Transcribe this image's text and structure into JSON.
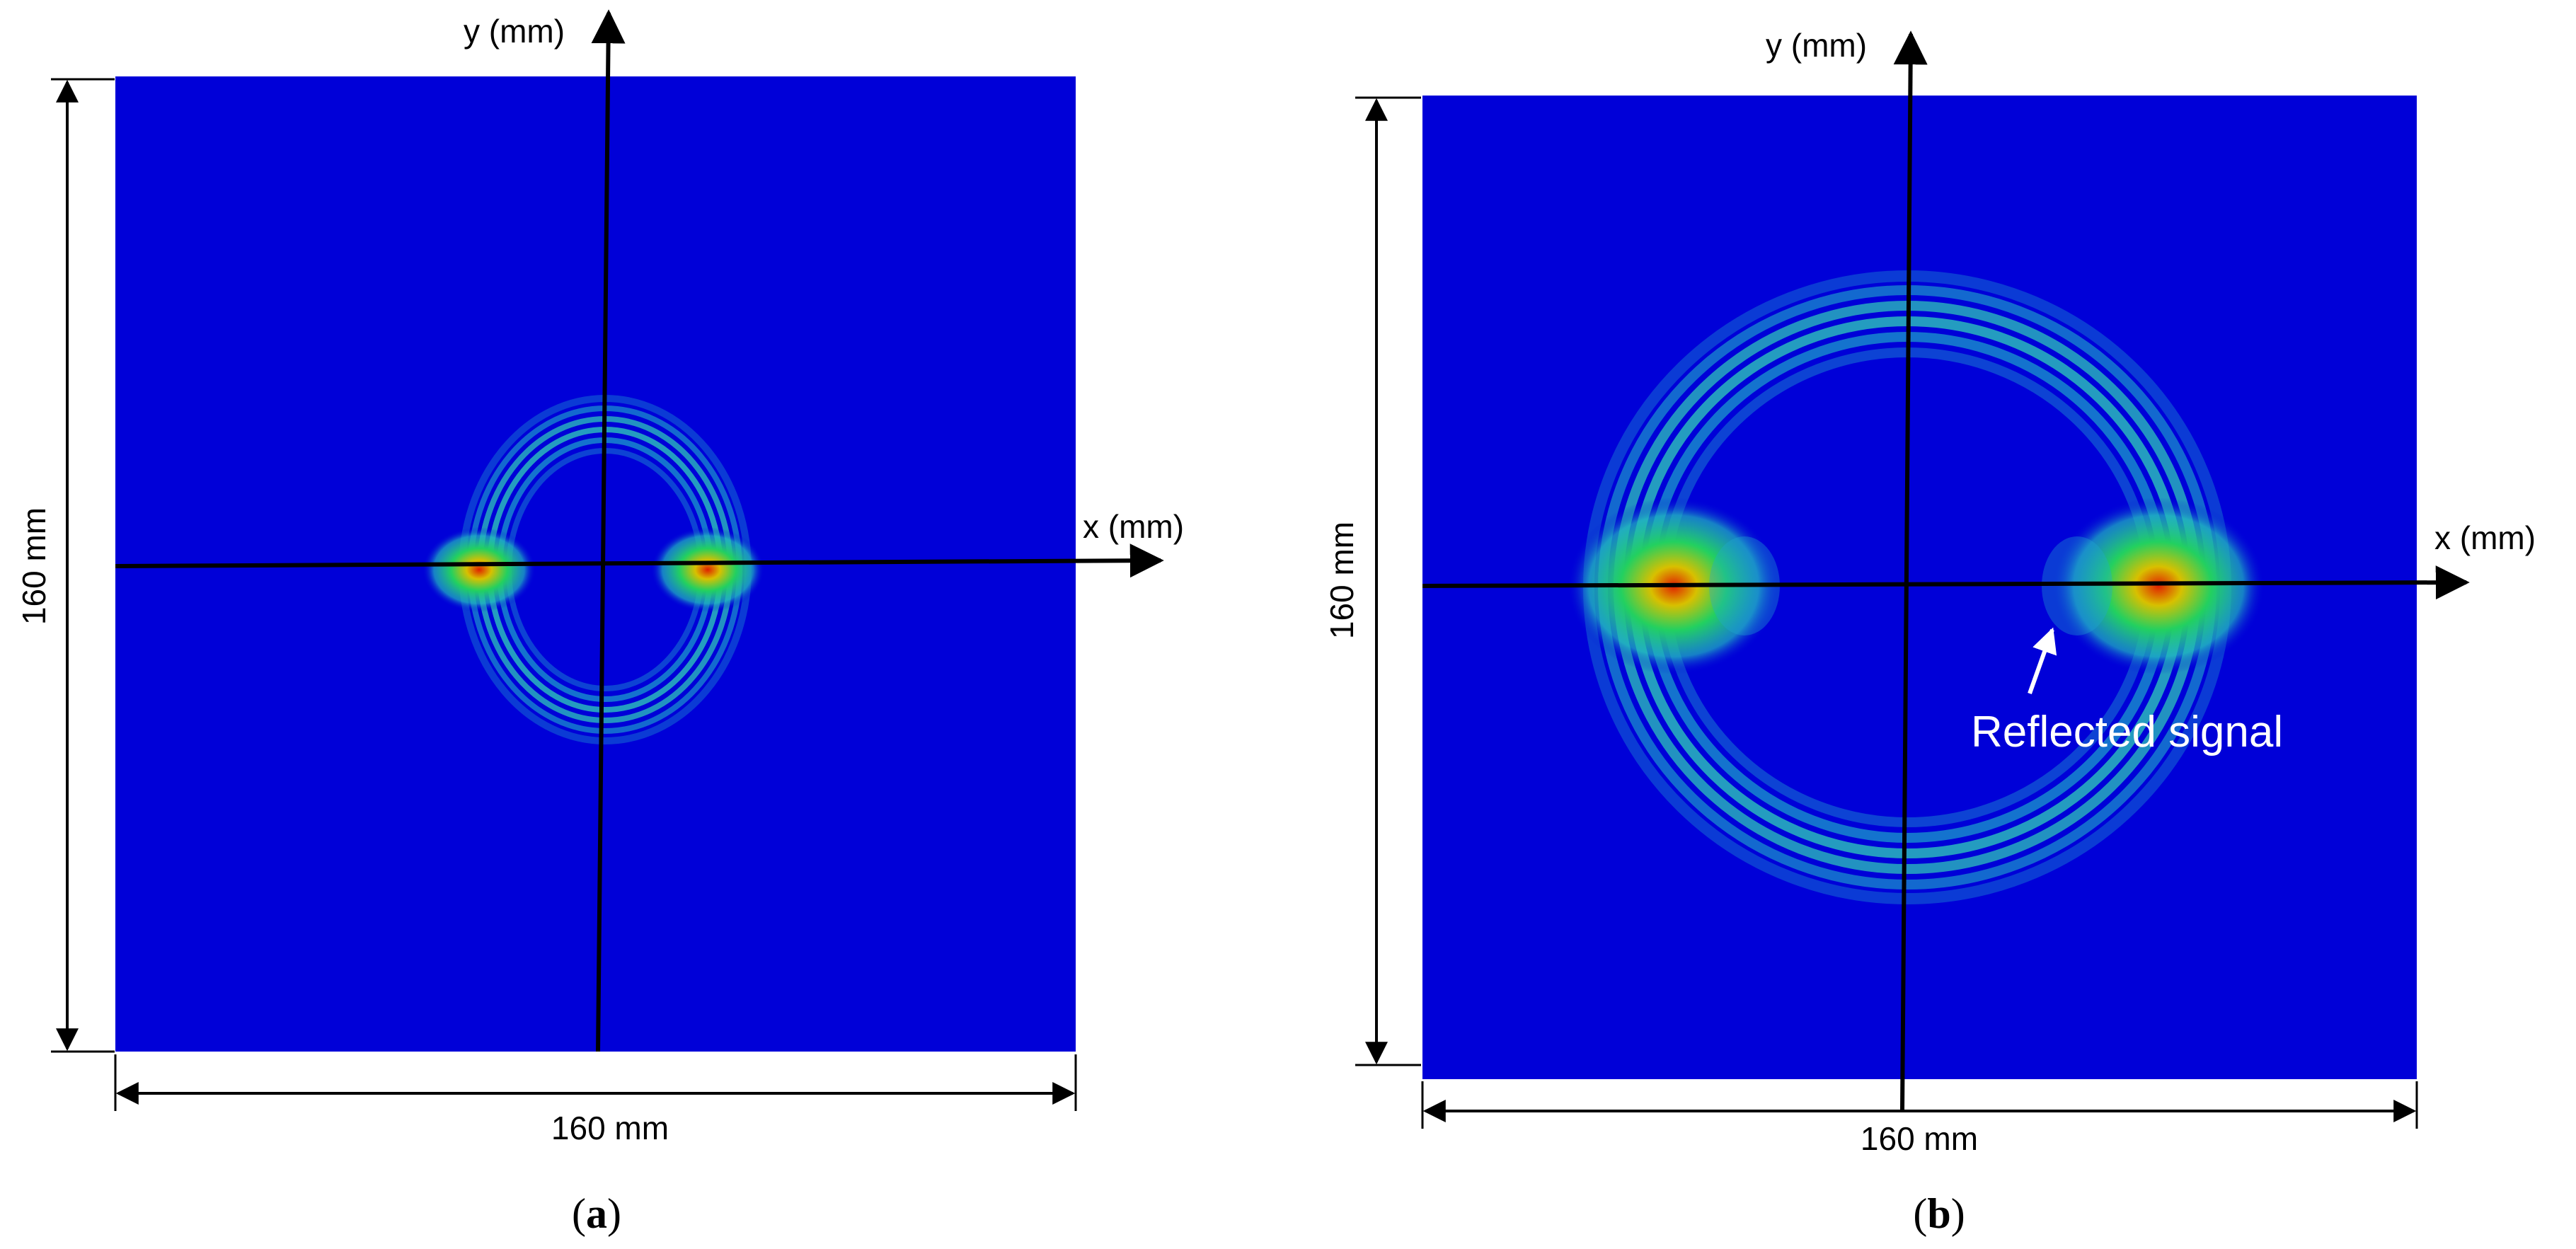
{
  "panels": [
    {
      "id": "a",
      "caption_open": "(",
      "caption_letter": "a",
      "caption_close": ")",
      "x_axis_label": "x (mm)",
      "y_axis_label": "y (mm)",
      "width_label": "160 mm",
      "height_label": "160 mm",
      "annotation": ""
    },
    {
      "id": "b",
      "caption_open": "(",
      "caption_letter": "b",
      "caption_close": ")",
      "x_axis_label": "x (mm)",
      "y_axis_label": "y (mm)",
      "width_label": "160 mm",
      "height_label": "160 mm",
      "annotation": "Reflected signal"
    }
  ],
  "colors": {
    "background_field": "#0000d8",
    "ring": "#22c0c8",
    "hotspot_outer": "#22d060",
    "hotspot_mid": "#d8c000",
    "hotspot_core": "#e02000",
    "axis": "#000000",
    "annotation": "#ffffff"
  }
}
